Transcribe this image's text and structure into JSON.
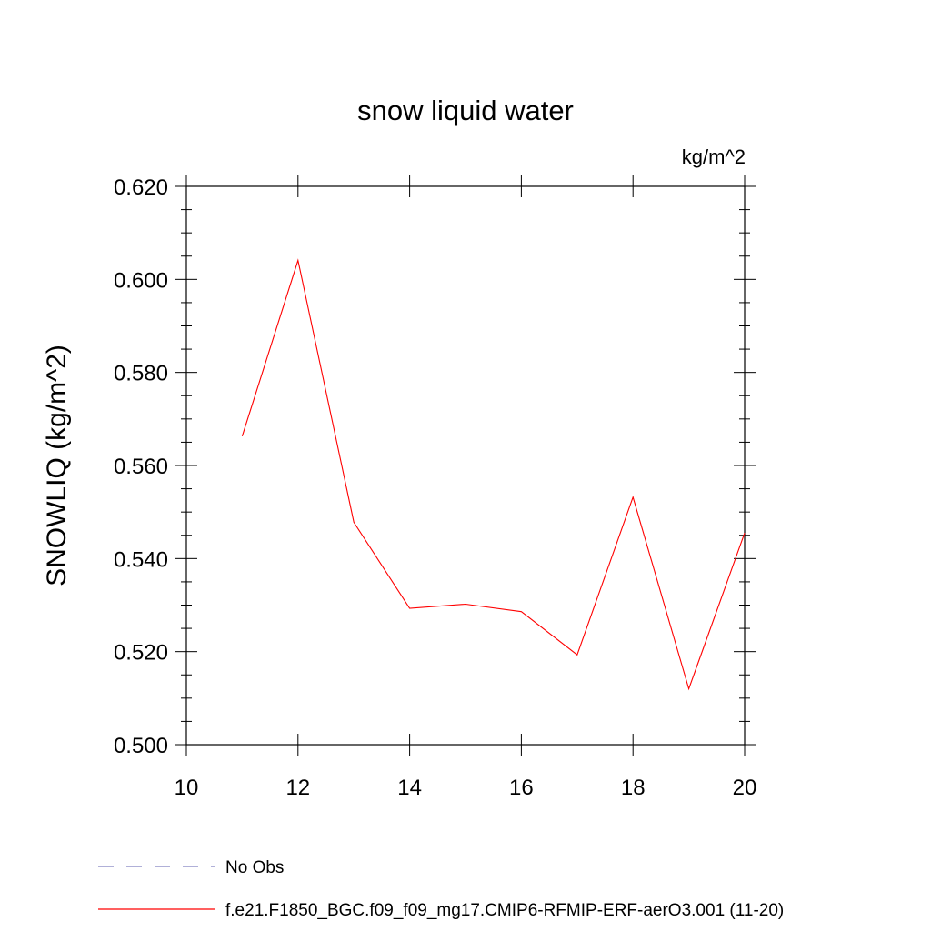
{
  "chart_data": {
    "type": "line",
    "title": "snow liquid water",
    "units": "kg/m^2",
    "ylabel": "SNOWLIQ  (kg/m^2)",
    "xlabel": "",
    "xlim": [
      10,
      20
    ],
    "ylim": [
      0.5,
      0.62
    ],
    "x_ticks": [
      "10",
      "12",
      "14",
      "16",
      "18",
      "20"
    ],
    "y_ticks": [
      "0.500",
      "0.520",
      "0.540",
      "0.560",
      "0.580",
      "0.600",
      "0.620"
    ],
    "grid": false,
    "legend_position": "bottom",
    "series": [
      {
        "name": "f.e21.F1850_BGC.f09_f09_mg17.CMIP6-RFMIP-ERF-aerO3.001 (11-20)",
        "color": "#ff0000",
        "x": [
          11,
          12,
          13,
          14,
          15,
          16,
          17,
          18,
          19,
          20
        ],
        "y": [
          0.5663,
          0.6041,
          0.5478,
          0.5293,
          0.5302,
          0.5286,
          0.5193,
          0.5532,
          0.512,
          0.5455
        ]
      }
    ],
    "legend": [
      {
        "label": "No Obs",
        "style": "dashed",
        "color": "#8080c0"
      },
      {
        "label": "f.e21.F1850_BGC.f09_f09_mg17.CMIP6-RFMIP-ERF-aerO3.001 (11-20)",
        "style": "solid",
        "color": "#ff0000"
      }
    ]
  }
}
